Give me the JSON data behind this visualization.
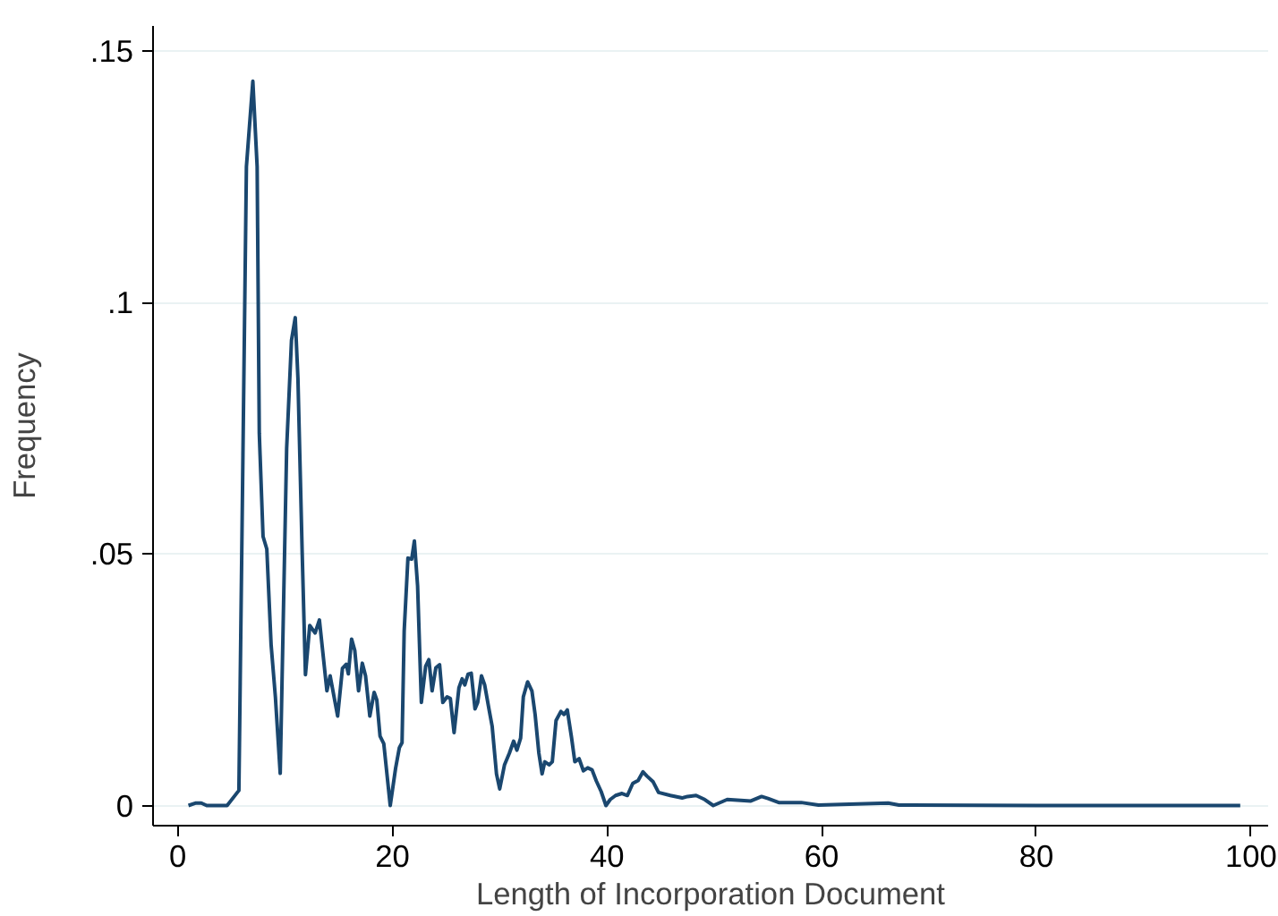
{
  "chart_data": {
    "type": "line",
    "xlabel": "Length of Incorporation Document",
    "ylabel": "Frequency",
    "xlim": [
      -2.3,
      101.6
    ],
    "ylim": [
      -0.004,
      0.155
    ],
    "xticks": [
      0,
      20,
      40,
      60,
      80,
      100
    ],
    "yticks": [
      0,
      {
        "value": 0.05,
        "label": ".05"
      },
      {
        "value": 0.1,
        "label": ".1"
      },
      {
        "value": 0.15,
        "label": ".15"
      }
    ],
    "grid": "y",
    "marker": "none",
    "line_style": "solid",
    "series": [
      {
        "color": "#1a476f",
        "x": [
          1,
          1.7,
          2.2,
          2.7,
          4.6,
          5.7,
          6.4,
          7.0,
          7.4,
          7.6,
          7.95,
          8.3,
          8.7,
          9.1,
          9.55,
          10.15,
          10.6,
          10.95,
          11.2,
          11.6,
          11.9,
          12.3,
          12.8,
          13.2,
          13.9,
          14.2,
          14.9,
          15.35,
          15.7,
          15.9,
          16.2,
          16.5,
          16.85,
          17.2,
          17.5,
          17.9,
          18.3,
          18.55,
          18.85,
          19.2,
          19.8,
          20.3,
          20.65,
          20.9,
          21.1,
          21.45,
          21.8,
          22.05,
          22.35,
          22.7,
          23.1,
          23.4,
          23.7,
          24.05,
          24.4,
          24.7,
          25.1,
          25.4,
          25.75,
          26.2,
          26.5,
          26.75,
          27.05,
          27.35,
          27.7,
          27.95,
          28.3,
          28.6,
          29.0,
          29.3,
          29.7,
          30.0,
          30.45,
          30.9,
          31.3,
          31.6,
          31.95,
          32.2,
          32.6,
          33.0,
          33.3,
          33.65,
          33.95,
          34.2,
          34.6,
          34.9,
          35.25,
          35.7,
          36.0,
          36.3,
          36.7,
          37.0,
          37.4,
          37.8,
          38.2,
          38.6,
          39.0,
          39.45,
          39.9,
          40.3,
          40.8,
          41.4,
          41.9,
          42.4,
          42.9,
          43.35,
          43.7,
          44.3,
          44.8,
          45.9,
          47.0,
          47.5,
          48.3,
          49.1,
          49.9,
          51.2,
          53.4,
          54.4,
          55.0,
          56.0,
          58.1,
          59.7,
          66.2,
          67.2,
          80,
          99
        ],
        "values": [
          0,
          0.0005,
          0.0005,
          0,
          0,
          0.003,
          0.127,
          0.144,
          0.127,
          0.074,
          0.0535,
          0.051,
          0.032,
          0.0216,
          0.0064,
          0.071,
          0.0925,
          0.097,
          0.085,
          0.05,
          0.026,
          0.0358,
          0.0343,
          0.0369,
          0.0228,
          0.0258,
          0.0178,
          0.0273,
          0.0281,
          0.0262,
          0.0331,
          0.0308,
          0.0228,
          0.0283,
          0.0258,
          0.0178,
          0.0225,
          0.021,
          0.0138,
          0.0123,
          0,
          0.0074,
          0.0115,
          0.0125,
          0.0347,
          0.0492,
          0.049,
          0.0526,
          0.0437,
          0.0205,
          0.0277,
          0.029,
          0.0228,
          0.0274,
          0.028,
          0.0205,
          0.0216,
          0.0213,
          0.0145,
          0.0234,
          0.0252,
          0.024,
          0.0261,
          0.0263,
          0.0192,
          0.0205,
          0.0258,
          0.024,
          0.0192,
          0.0157,
          0.0063,
          0.0033,
          0.0081,
          0.0104,
          0.0128,
          0.011,
          0.0134,
          0.0216,
          0.0246,
          0.0228,
          0.0181,
          0.0104,
          0.0063,
          0.0087,
          0.0081,
          0.0087,
          0.0169,
          0.0187,
          0.0181,
          0.019,
          0.0134,
          0.0087,
          0.0093,
          0.0069,
          0.0075,
          0.0071,
          0.0049,
          0.0028,
          0,
          0.0012,
          0.002,
          0.0024,
          0.002,
          0.0044,
          0.005,
          0.0067,
          0.0059,
          0.0047,
          0.0026,
          0.002,
          0.0015,
          0.0018,
          0.002,
          0.0012,
          0,
          0.0012,
          0.0009,
          0.0018,
          0.0014,
          0.0006,
          0.0006,
          0.0001,
          0.0005,
          0.0001,
          0,
          0
        ]
      }
    ]
  }
}
